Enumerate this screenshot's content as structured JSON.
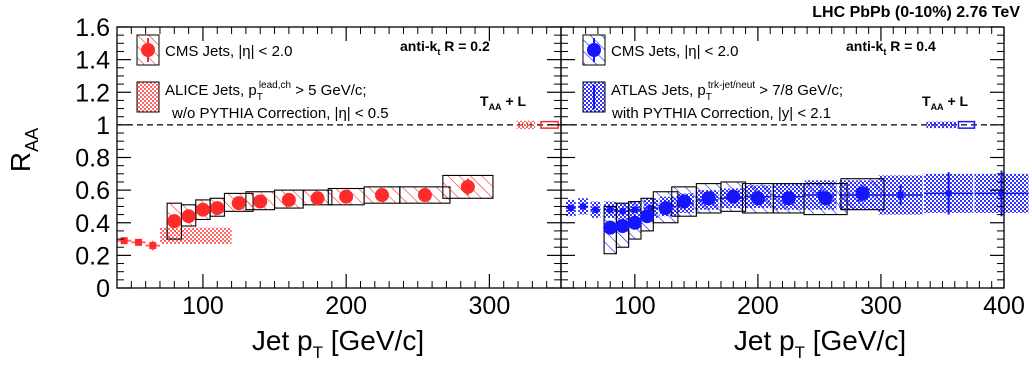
{
  "header": "LHC PbPb (0-10%) 2.76 TeV",
  "colors": {
    "cms_red": "#ff2a2a",
    "alice_red": "#ff6666",
    "cms_blue": "#1515ff",
    "atlas_blue": "#3333ff",
    "frame": "#000000"
  },
  "chart_data": [
    {
      "type": "scatter",
      "panel": "left",
      "xlim": [
        40,
        350
      ],
      "ylim": [
        0,
        1.6
      ],
      "ylabel": "R_AA",
      "xlabel": "Jet p_T [GeV/c]",
      "y_ticks": [
        "0",
        "0.2",
        "0.4",
        "0.6",
        "0.8",
        "1",
        "1.2",
        "1.4",
        "1.6"
      ],
      "x_ticks": [
        "100",
        "200",
        "300"
      ],
      "reference_line": 1,
      "annotation": "anti-k_t R = 0.2",
      "norm_label": "T_AA + L",
      "series": [
        {
          "name": "CMS Jets, |η| < 2.0",
          "x": [
            80,
            90,
            100,
            110,
            125,
            140,
            160,
            180,
            200,
            225,
            255,
            285
          ],
          "xerr": [
            5,
            5,
            5,
            5,
            10,
            10,
            10,
            10,
            12.5,
            12.5,
            17.5,
            17.5
          ],
          "y": [
            0.41,
            0.44,
            0.48,
            0.49,
            0.52,
            0.53,
            0.54,
            0.55,
            0.56,
            0.57,
            0.57,
            0.62
          ],
          "syst_lo": [
            0.3,
            0.38,
            0.42,
            0.44,
            0.47,
            0.48,
            0.49,
            0.51,
            0.51,
            0.52,
            0.52,
            0.55
          ],
          "syst_hi": [
            0.52,
            0.51,
            0.54,
            0.55,
            0.58,
            0.59,
            0.6,
            0.6,
            0.61,
            0.62,
            0.62,
            0.69
          ],
          "stat": [
            0.04,
            0.03,
            0.03,
            0.02,
            0.02,
            0.02,
            0.02,
            0.02,
            0.02,
            0.03,
            0.03,
            0.05
          ]
        },
        {
          "name": "ALICE Jets, p_T^lead,ch > 5 GeV/c; w/o PYTHIA Correction, |η| < 0.5",
          "x": [
            45,
            55,
            65
          ],
          "y": [
            0.29,
            0.28,
            0.26
          ],
          "xerr": [
            5,
            5,
            5
          ],
          "stat": [
            0.02,
            0.02,
            0.03
          ],
          "syst_band_x": [
            70,
            120
          ],
          "syst_band_y": [
            0.27,
            0.37
          ]
        }
      ],
      "norm_boxes": [
        {
          "label": "T_AA",
          "xrange": [
            319,
            332
          ],
          "y": 1,
          "halfheight": 0.025
        },
        {
          "label": "L",
          "xrange": [
            336,
            348
          ],
          "y": 1,
          "halfheight": 0.02
        }
      ]
    },
    {
      "type": "scatter",
      "panel": "right",
      "xlim": [
        40,
        400
      ],
      "ylim": [
        0,
        1.6
      ],
      "xlabel": "Jet p_T [GeV/c]",
      "x_ticks": [
        "100",
        "200",
        "300",
        "400"
      ],
      "reference_line": 1,
      "annotation": "anti-k_t R = 0.4",
      "norm_label": "T_AA + L",
      "series": [
        {
          "name": "CMS Jets, |η| < 2.0",
          "x": [
            80,
            90,
            100,
            110,
            125,
            140,
            160,
            180,
            200,
            225,
            255,
            285
          ],
          "xerr": [
            5,
            5,
            5,
            5,
            10,
            10,
            10,
            10,
            12.5,
            12.5,
            17.5,
            17.5
          ],
          "y": [
            0.37,
            0.38,
            0.4,
            0.44,
            0.49,
            0.53,
            0.55,
            0.56,
            0.55,
            0.55,
            0.55,
            0.58
          ],
          "syst_lo": [
            0.21,
            0.25,
            0.3,
            0.35,
            0.4,
            0.44,
            0.46,
            0.47,
            0.46,
            0.46,
            0.45,
            0.48
          ],
          "syst_hi": [
            0.5,
            0.52,
            0.53,
            0.55,
            0.59,
            0.62,
            0.64,
            0.65,
            0.64,
            0.64,
            0.64,
            0.67
          ],
          "stat": [
            0.04,
            0.03,
            0.03,
            0.03,
            0.03,
            0.03,
            0.03,
            0.03,
            0.03,
            0.03,
            0.04,
            0.05
          ]
        },
        {
          "name": "ATLAS Jets, p_T^trk-jet/neut > 7/8 GeV/c; with PYTHIA Correction, |y| < 2.1",
          "x": [
            48,
            58,
            68,
            80,
            90,
            100,
            113,
            127,
            141,
            159,
            179,
            200,
            225,
            251,
            282,
            316,
            355,
            398
          ],
          "xerr": [
            4,
            4,
            4,
            5,
            5,
            5,
            6,
            7,
            7,
            9,
            10,
            11,
            12,
            13,
            16,
            18,
            20,
            22
          ],
          "y": [
            0.49,
            0.5,
            0.48,
            0.48,
            0.47,
            0.48,
            0.49,
            0.5,
            0.52,
            0.54,
            0.55,
            0.56,
            0.56,
            0.57,
            0.57,
            0.57,
            0.58,
            0.58
          ],
          "sys": [
            0.05,
            0.05,
            0.05,
            0.05,
            0.05,
            0.05,
            0.06,
            0.06,
            0.06,
            0.06,
            0.06,
            0.07,
            0.08,
            0.09,
            0.09,
            0.12,
            0.12,
            0.12
          ],
          "stat": [
            0.02,
            0.02,
            0.02,
            0.02,
            0.02,
            0.02,
            0.02,
            0.02,
            0.02,
            0.02,
            0.02,
            0.02,
            0.02,
            0.03,
            0.04,
            0.06,
            0.13,
            0.14
          ]
        }
      ],
      "norm_boxes": [
        {
          "label": "T_AA",
          "xrange": [
            337,
            361
          ],
          "y": 1,
          "halfheight": 0.02
        },
        {
          "label": "L",
          "xrange": [
            363,
            376
          ],
          "y": 1,
          "halfheight": 0.02
        }
      ]
    }
  ],
  "legends": {
    "left": {
      "cms": {
        "main": "CMS Jets, |η| < 2.0"
      },
      "alice": {
        "pre": "ALICE Jets, p",
        "sub": "T",
        "sup": "lead,ch",
        "post": " > 5 GeV/c;",
        "line2": "w/o PYTHIA Correction, |η| < 0.5"
      }
    },
    "right": {
      "cms": {
        "main": "CMS Jets, |η| < 2.0"
      },
      "atlas": {
        "pre": "ATLAS Jets, p",
        "sub": "T",
        "sup": "trk-jet/neut",
        "post": " > 7/8 GeV/c;",
        "line2": "with PYTHIA Correction, |y| < 2.1"
      }
    }
  },
  "annotations": {
    "left": {
      "pre": "anti-k",
      "sub": "t",
      "post": " R = 0.2"
    },
    "right": {
      "pre": "anti-k",
      "sub": "t",
      "post": " R = 0.4"
    },
    "norm": {
      "pre": "T",
      "sub": "AA",
      "post": " + L"
    }
  },
  "axis": {
    "ylabel": {
      "main": "R",
      "sub": "AA"
    },
    "xlabel": {
      "main": "Jet p",
      "sub": "T",
      "post": " [GeV/c]"
    }
  }
}
